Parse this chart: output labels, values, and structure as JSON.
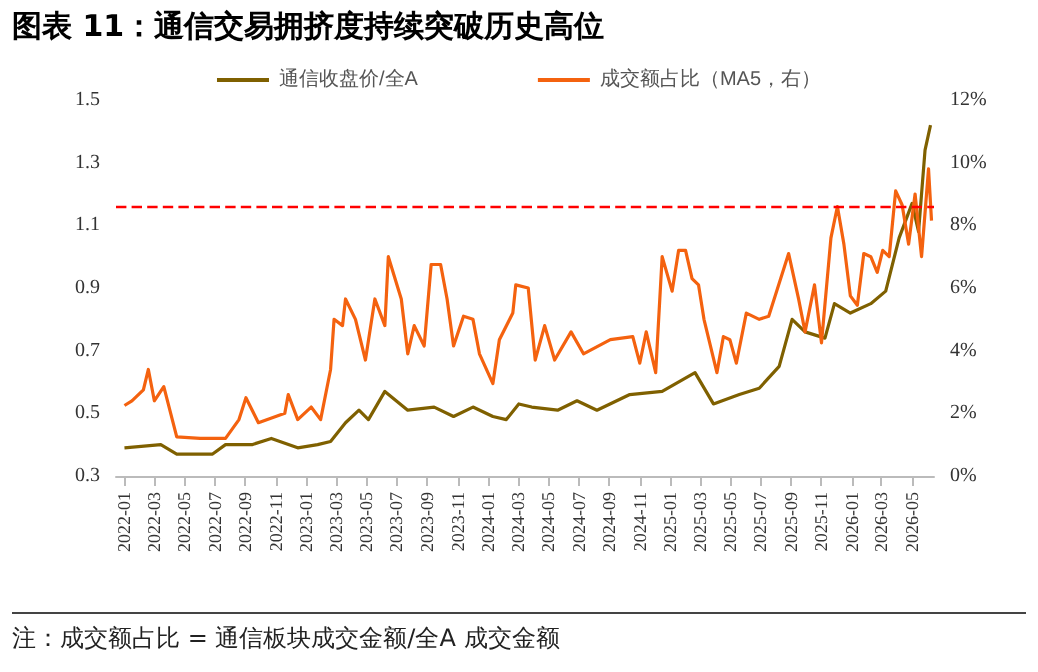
{
  "chart_data": {
    "type": "line",
    "title": "图表 11：通信交易拥挤度持续突破历史高位",
    "annotations": [
      "注：成交额占比 = 通信板块成交金额/全A 成交金额"
    ],
    "series": [
      {
        "name": "通信收盘价/全A",
        "color": "#7f6000",
        "x": [
          "2022-01-01",
          "2022-03-15",
          "2022-04-16",
          "2022-06-27",
          "2022-07-23",
          "2022-09-14",
          "2022-10-23",
          "2022-12-15",
          "2023-01-24",
          "2023-02-19",
          "2023-03-21",
          "2023-04-17",
          "2023-05-06",
          "2023-06-08",
          "2023-07-24",
          "2023-09-15",
          "2023-10-24",
          "2023-12-02",
          "2024-01-11",
          "2024-02-07",
          "2024-03-03",
          "2024-03-29",
          "2024-05-20",
          "2024-06-28",
          "2024-08-07",
          "2024-10-12",
          "2024-12-16",
          "2025-02-20",
          "2025-03-29",
          "2025-05-20",
          "2025-06-29",
          "2025-08-08",
          "2025-09-03",
          "2025-09-29",
          "2025-11-08",
          "2025-11-27",
          "2025-12-29",
          "2026-02-08",
          "2026-03-10",
          "2026-04-06",
          "2026-05-02",
          "2026-05-15",
          "2026-05-28",
          "2026-06-08"
        ],
        "values": [
          0.39,
          0.4,
          0.37,
          0.37,
          0.4,
          0.4,
          0.42,
          0.39,
          0.4,
          0.41,
          0.47,
          0.51,
          0.48,
          0.57,
          0.51,
          0.52,
          0.49,
          0.52,
          0.49,
          0.48,
          0.53,
          0.52,
          0.51,
          0.54,
          0.51,
          0.56,
          0.57,
          0.63,
          0.53,
          0.56,
          0.58,
          0.65,
          0.8,
          0.76,
          0.74,
          0.85,
          0.82,
          0.85,
          0.89,
          1.06,
          1.17,
          1.08,
          1.34,
          1.42
        ]
      },
      {
        "name": "成交额占比（MA5，右）",
        "color": "#f4620f",
        "axis": "y2",
        "x": [
          "2022-01-01",
          "2022-01-16",
          "2022-02-08",
          "2022-02-18",
          "2022-03-02",
          "2022-03-21",
          "2022-04-16",
          "2022-06-02",
          "2022-07-23",
          "2022-08-19",
          "2022-09-02",
          "2022-09-27",
          "2022-11-19",
          "2022-11-26",
          "2022-12-15",
          "2023-01-11",
          "2023-01-30",
          "2023-02-19",
          "2023-02-26",
          "2023-03-15",
          "2023-03-21",
          "2023-04-10",
          "2023-04-30",
          "2023-05-19",
          "2023-06-08",
          "2023-06-15",
          "2023-07-11",
          "2023-07-24",
          "2023-08-06",
          "2023-08-26",
          "2023-09-09",
          "2023-09-28",
          "2023-10-11",
          "2023-10-24",
          "2023-11-13",
          "2023-12-02",
          "2023-12-15",
          "2024-01-11",
          "2024-01-24",
          "2024-02-20",
          "2024-02-26",
          "2024-03-22",
          "2024-04-05",
          "2024-04-24",
          "2024-05-14",
          "2024-06-16",
          "2024-07-11",
          "2024-09-03",
          "2024-10-18",
          "2024-11-01",
          "2024-11-14",
          "2024-12-03",
          "2024-12-16",
          "2025-01-05",
          "2025-01-18",
          "2025-02-01",
          "2025-02-14",
          "2025-02-27",
          "2025-03-10",
          "2025-04-05",
          "2025-04-18",
          "2025-05-01",
          "2025-05-14",
          "2025-06-03",
          "2025-06-29",
          "2025-07-18",
          "2025-08-27",
          "2025-09-16",
          "2025-09-29",
          "2025-10-18",
          "2025-11-01",
          "2025-11-20",
          "2025-12-03",
          "2025-12-16",
          "2025-12-29",
          "2026-01-12",
          "2026-01-25",
          "2026-02-08",
          "2026-02-21",
          "2026-03-04",
          "2026-03-17",
          "2026-03-30",
          "2026-04-12",
          "2026-04-25",
          "2026-05-08",
          "2026-05-21",
          "2026-06-04",
          "2026-06-10"
        ],
        "values": [
          2.25,
          2.4,
          2.75,
          3.4,
          2.4,
          2.85,
          1.25,
          1.2,
          1.2,
          1.8,
          2.5,
          1.7,
          2.0,
          2.6,
          1.8,
          2.2,
          1.8,
          3.4,
          5.0,
          4.8,
          5.65,
          5.0,
          3.7,
          5.65,
          4.8,
          7.0,
          5.65,
          3.9,
          4.8,
          4.15,
          6.75,
          6.75,
          5.65,
          4.15,
          5.1,
          5.0,
          3.9,
          2.95,
          4.35,
          5.2,
          6.1,
          6.0,
          3.7,
          4.8,
          3.7,
          4.6,
          3.9,
          4.35,
          4.45,
          3.6,
          4.6,
          3.3,
          7.0,
          5.9,
          7.2,
          7.2,
          6.3,
          6.1,
          5.0,
          3.3,
          4.45,
          4.35,
          3.6,
          5.2,
          5.0,
          5.1,
          7.1,
          5.65,
          4.6,
          6.1,
          4.25,
          7.6,
          8.6,
          7.4,
          5.75,
          5.45,
          7.1,
          7.0,
          6.5,
          7.2,
          7.0,
          9.1,
          8.65,
          7.4,
          9.0,
          7.0,
          9.8,
          8.15
        ]
      }
    ],
    "xlim": [
      "2021-12-15",
      "2026-06-15"
    ],
    "xticks": [
      "2022-01",
      "2022-03",
      "2022-05",
      "2022-07",
      "2022-09",
      "2022-11",
      "2023-01",
      "2023-03",
      "2023-05",
      "2023-07",
      "2023-09",
      "2023-11",
      "2024-01",
      "2024-03",
      "2024-05",
      "2024-07",
      "2024-09",
      "2024-11",
      "2025-01",
      "2025-03",
      "2025-05",
      "2025-07",
      "2025-09",
      "2025-11",
      "2026-01",
      "2026-03",
      "2026-05"
    ],
    "ylim": [
      0.3,
      1.5
    ],
    "yticks": [
      0.3,
      0.5,
      0.7,
      0.9,
      1.1,
      1.3,
      1.5
    ],
    "y2lim": [
      0,
      12
    ],
    "y2ticks": [
      {
        "value": 0,
        "label": "0%"
      },
      {
        "value": 2,
        "label": "2%"
      },
      {
        "value": 4,
        "label": "4%"
      },
      {
        "value": 6,
        "label": "6%"
      },
      {
        "value": 8,
        "label": "8%"
      },
      {
        "value": 10,
        "label": "10%"
      },
      {
        "value": 12,
        "label": "12%"
      }
    ],
    "ref_lines": [
      {
        "axis": "y2",
        "value": 8.6,
        "color": "#ff0000",
        "line_style": "dashed"
      }
    ],
    "grid": false,
    "legend": "top",
    "marker": "none",
    "line_style": "solid"
  }
}
